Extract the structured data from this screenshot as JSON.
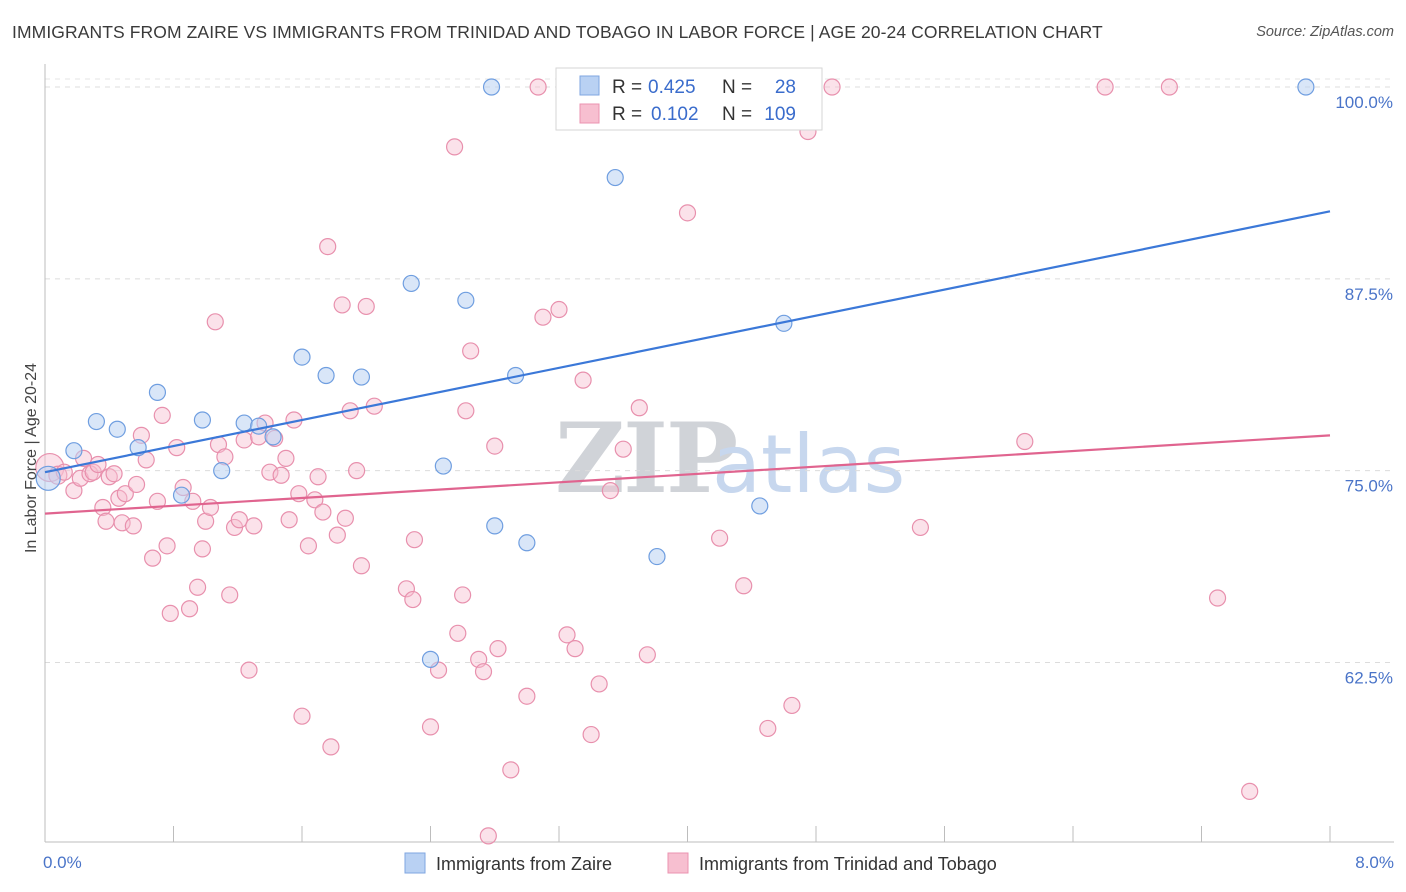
{
  "title": "IMMIGRANTS FROM ZAIRE VS IMMIGRANTS FROM TRINIDAD AND TOBAGO IN LABOR FORCE | AGE 20-24 CORRELATION CHART",
  "source": "Source: ZipAtlas.com",
  "watermark": {
    "zip": "ZIP",
    "atlas": "atlas"
  },
  "colors": {
    "blue": "#3b78d8",
    "blue_fill": "#b9d1f3",
    "pink": "#e0648f",
    "pink_fill": "#f7bfd0",
    "axis_label": "#4a74c8"
  },
  "chart_data": {
    "type": "scatter",
    "title": "IMMIGRANTS FROM ZAIRE VS IMMIGRANTS FROM TRINIDAD AND TOBAGO IN LABOR FORCE | AGE 20-24 CORRELATION CHART",
    "xlabel": "",
    "ylabel": "In Labor Force | Age 20-24",
    "xlim": [
      0,
      8
    ],
    "ylim": [
      50.8,
      101.5
    ],
    "x_tick_labels": [
      "0.0%",
      "8.0%"
    ],
    "y_ticks": [
      62.5,
      75.0,
      87.5,
      100.0
    ],
    "y_tick_labels": [
      "62.5%",
      "75.0%",
      "87.5%",
      "100.0%"
    ],
    "grid": true,
    "legend": {
      "placement": "top-center",
      "entries": [
        {
          "r_label": "R =",
          "r": "0.425",
          "n_label": "N =",
          "n": "28"
        },
        {
          "r_label": "R =",
          "r": "0.102",
          "n_label": "N =",
          "n": "109"
        }
      ]
    },
    "series": [
      {
        "name": "Immigrants from Zaire",
        "color": "#3b78d8",
        "trend": {
          "x": [
            0,
            8
          ],
          "y": [
            74.9,
            91.9
          ]
        },
        "points": [
          [
            0.02,
            74.5,
            12
          ],
          [
            0.18,
            76.3,
            8
          ],
          [
            0.32,
            78.2,
            8
          ],
          [
            0.45,
            77.7,
            8
          ],
          [
            0.58,
            76.5,
            8
          ],
          [
            0.7,
            80.1,
            8
          ],
          [
            0.85,
            73.4,
            8
          ],
          [
            0.98,
            78.3,
            8
          ],
          [
            1.1,
            75.0,
            8
          ],
          [
            1.24,
            78.1,
            8
          ],
          [
            1.33,
            77.9,
            8
          ],
          [
            1.42,
            77.2,
            8
          ],
          [
            1.6,
            82.4,
            8
          ],
          [
            1.75,
            81.2,
            8
          ],
          [
            1.97,
            81.1,
            8
          ],
          [
            2.28,
            87.2,
            8
          ],
          [
            2.4,
            62.7,
            8
          ],
          [
            2.48,
            75.3,
            8
          ],
          [
            2.62,
            86.1,
            8
          ],
          [
            2.8,
            71.4,
            8
          ],
          [
            2.78,
            100.0,
            8
          ],
          [
            2.93,
            81.2,
            8
          ],
          [
            3.0,
            70.3,
            8
          ],
          [
            3.55,
            94.1,
            8
          ],
          [
            3.81,
            69.4,
            8
          ],
          [
            4.45,
            72.7,
            8
          ],
          [
            4.6,
            84.6,
            8
          ],
          [
            7.85,
            100.0,
            8
          ]
        ]
      },
      {
        "name": "Immigrants from Trinidad and Tobago",
        "color": "#e0648f",
        "trend": {
          "x": [
            0,
            8
          ],
          "y": [
            72.2,
            77.3
          ]
        },
        "points": [
          [
            0.03,
            75.2,
            14
          ],
          [
            0.08,
            74.7,
            9
          ],
          [
            0.12,
            74.9,
            8
          ],
          [
            0.18,
            73.7,
            8
          ],
          [
            0.22,
            74.5,
            8
          ],
          [
            0.24,
            75.8,
            8
          ],
          [
            0.28,
            74.8,
            8
          ],
          [
            0.3,
            74.9,
            8
          ],
          [
            0.33,
            75.4,
            8
          ],
          [
            0.36,
            72.6,
            8
          ],
          [
            0.38,
            71.7,
            8
          ],
          [
            0.4,
            74.6,
            8
          ],
          [
            0.43,
            74.8,
            8
          ],
          [
            0.46,
            73.2,
            8
          ],
          [
            0.48,
            71.6,
            8
          ],
          [
            0.5,
            73.5,
            8
          ],
          [
            0.55,
            71.4,
            8
          ],
          [
            0.57,
            74.1,
            8
          ],
          [
            0.6,
            77.3,
            8
          ],
          [
            0.63,
            75.7,
            8
          ],
          [
            0.67,
            69.3,
            8
          ],
          [
            0.7,
            73.0,
            8
          ],
          [
            0.73,
            78.6,
            8
          ],
          [
            0.76,
            70.1,
            8
          ],
          [
            0.78,
            65.7,
            8
          ],
          [
            0.82,
            76.5,
            8
          ],
          [
            0.86,
            73.9,
            8
          ],
          [
            0.9,
            66.0,
            8
          ],
          [
            0.92,
            73.0,
            8
          ],
          [
            0.95,
            67.4,
            8
          ],
          [
            0.98,
            69.9,
            8
          ],
          [
            1.0,
            71.7,
            8
          ],
          [
            1.03,
            72.6,
            8
          ],
          [
            1.06,
            84.7,
            8
          ],
          [
            1.08,
            76.7,
            8
          ],
          [
            1.12,
            75.9,
            8
          ],
          [
            1.15,
            66.9,
            8
          ],
          [
            1.18,
            71.3,
            8
          ],
          [
            1.21,
            71.8,
            8
          ],
          [
            1.24,
            77.0,
            8
          ],
          [
            1.27,
            62.0,
            8
          ],
          [
            1.3,
            71.4,
            8
          ],
          [
            1.33,
            77.2,
            8
          ],
          [
            1.37,
            78.1,
            8
          ],
          [
            1.4,
            74.9,
            8
          ],
          [
            1.43,
            77.1,
            8
          ],
          [
            1.47,
            74.7,
            8
          ],
          [
            1.5,
            75.8,
            8
          ],
          [
            1.52,
            71.8,
            8
          ],
          [
            1.55,
            78.3,
            8
          ],
          [
            1.58,
            73.5,
            8
          ],
          [
            1.6,
            59.0,
            8
          ],
          [
            1.64,
            70.1,
            8
          ],
          [
            1.68,
            73.1,
            8
          ],
          [
            1.7,
            74.6,
            8
          ],
          [
            1.73,
            72.3,
            8
          ],
          [
            1.76,
            89.6,
            8
          ],
          [
            1.78,
            57.0,
            8
          ],
          [
            1.82,
            70.8,
            8
          ],
          [
            1.85,
            85.8,
            8
          ],
          [
            1.87,
            71.9,
            8
          ],
          [
            1.9,
            78.9,
            8
          ],
          [
            1.94,
            75.0,
            8
          ],
          [
            1.97,
            68.8,
            8
          ],
          [
            2.0,
            85.7,
            8
          ],
          [
            2.05,
            79.2,
            8
          ],
          [
            2.25,
            67.3,
            8
          ],
          [
            2.29,
            66.6,
            8
          ],
          [
            2.3,
            70.5,
            8
          ],
          [
            2.4,
            58.3,
            8
          ],
          [
            2.45,
            62.0,
            8
          ],
          [
            2.55,
            96.1,
            8
          ],
          [
            2.57,
            64.4,
            8
          ],
          [
            2.6,
            66.9,
            8
          ],
          [
            2.62,
            78.9,
            8
          ],
          [
            2.65,
            82.8,
            8
          ],
          [
            2.7,
            62.7,
            8
          ],
          [
            2.73,
            61.9,
            8
          ],
          [
            2.76,
            51.2,
            8
          ],
          [
            2.8,
            76.6,
            8
          ],
          [
            2.82,
            63.4,
            8
          ],
          [
            2.9,
            55.5,
            8
          ],
          [
            3.0,
            60.3,
            8
          ],
          [
            3.07,
            100.0,
            8
          ],
          [
            3.1,
            85.0,
            8
          ],
          [
            3.2,
            85.5,
            8
          ],
          [
            3.25,
            64.3,
            8
          ],
          [
            3.3,
            63.4,
            8
          ],
          [
            3.35,
            80.9,
            8
          ],
          [
            3.4,
            57.8,
            8
          ],
          [
            3.45,
            61.1,
            8
          ],
          [
            3.52,
            73.7,
            8
          ],
          [
            3.6,
            76.4,
            8
          ],
          [
            3.7,
            79.1,
            8
          ],
          [
            3.75,
            63.0,
            8
          ],
          [
            4.0,
            91.8,
            8
          ],
          [
            4.2,
            70.6,
            8
          ],
          [
            4.35,
            67.5,
            8
          ],
          [
            4.5,
            58.2,
            8
          ],
          [
            4.65,
            59.7,
            8
          ],
          [
            4.75,
            97.1,
            8
          ],
          [
            4.9,
            100.0,
            8
          ],
          [
            5.45,
            71.3,
            8
          ],
          [
            6.1,
            76.9,
            8
          ],
          [
            6.6,
            100.0,
            8
          ],
          [
            7.0,
            100.0,
            8
          ],
          [
            7.3,
            66.7,
            8
          ],
          [
            7.5,
            54.1,
            8
          ]
        ]
      }
    ]
  }
}
